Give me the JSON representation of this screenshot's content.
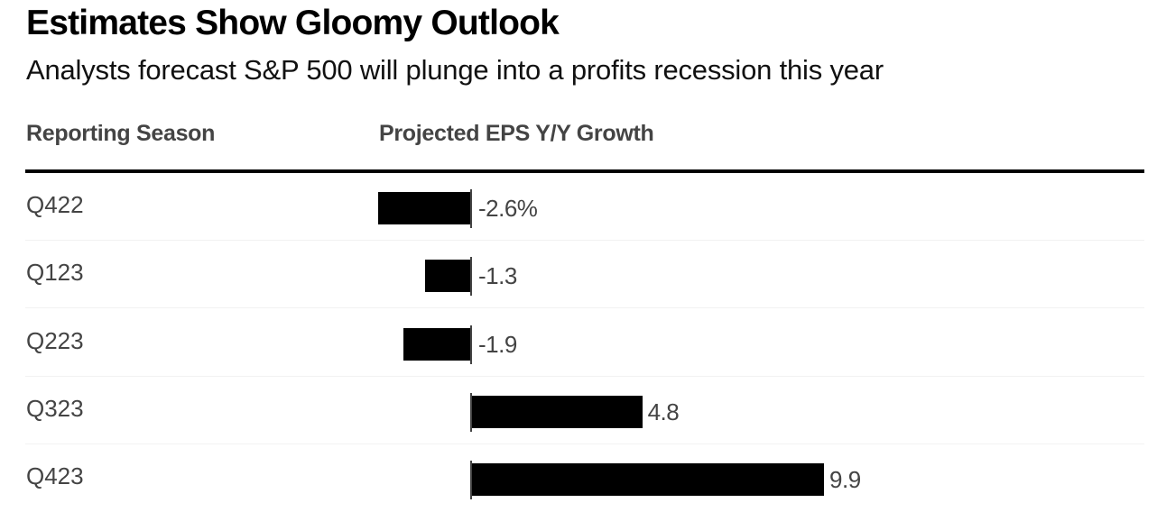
{
  "header": {
    "title": "Estimates Show Gloomy Outlook",
    "subtitle": "Analysts forecast S&P 500 will plunge into a profits recession this year"
  },
  "columns": {
    "season": "Reporting Season",
    "eps": "Projected EPS Y/Y Growth"
  },
  "colors": {
    "bar": "#000000",
    "text": "#444444",
    "zero_line": "#444444"
  },
  "chart_data": {
    "type": "bar",
    "orientation": "horizontal",
    "title": "Estimates Show Gloomy Outlook",
    "subtitle": "Analysts forecast S&P 500 will plunge into a profits recession this year",
    "xlabel": "Projected EPS Y/Y Growth",
    "ylabel": "Reporting Season",
    "unit": "%",
    "categories": [
      "Q422",
      "Q123",
      "Q223",
      "Q323",
      "Q423"
    ],
    "values": [
      -2.6,
      -1.3,
      -1.9,
      4.8,
      9.9
    ],
    "value_labels": [
      "-2.6%",
      "-1.3",
      "-1.9",
      "4.8",
      "9.9"
    ],
    "xlim": [
      -2.6,
      9.9
    ],
    "grid": false,
    "legend": "none"
  }
}
